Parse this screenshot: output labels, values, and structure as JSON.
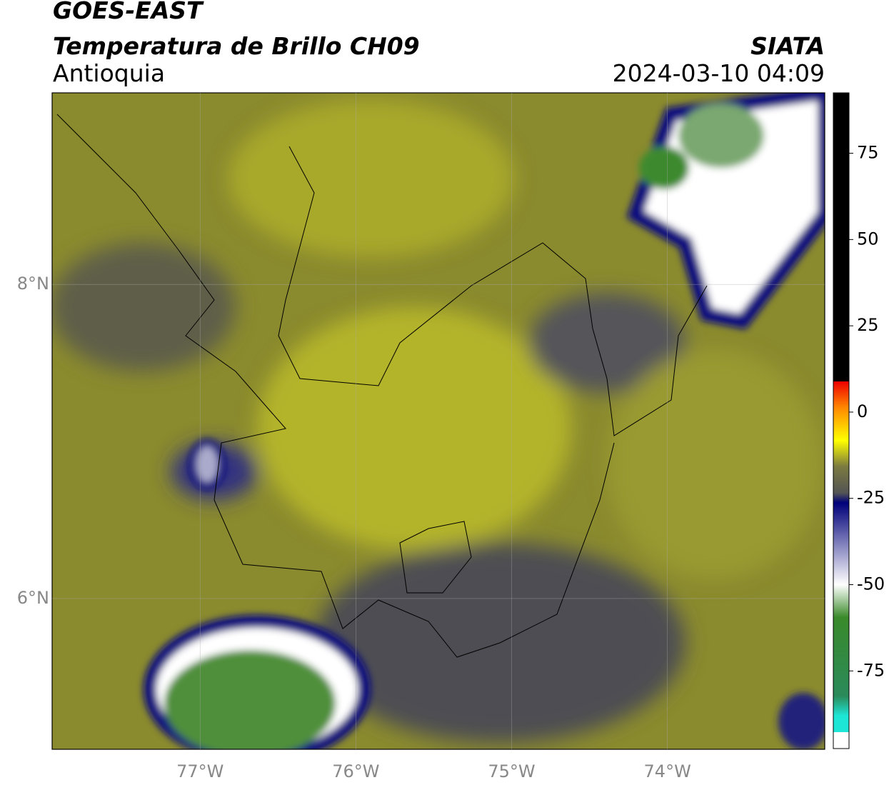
{
  "header": {
    "title": "GOES-EAST",
    "subtitle": "Temperatura de Brillo CH09",
    "region": "Antioquia",
    "source": "SIATA",
    "datetime": "2024-03-10 04:09"
  },
  "map": {
    "lon_lim": [
      -77.95,
      -72.99
    ],
    "lat_lim": [
      5.04,
      9.22
    ],
    "lon_ticks": [
      {
        "value": -77,
        "label": "77°W"
      },
      {
        "value": -76,
        "label": "76°W"
      },
      {
        "value": -75,
        "label": "75°W"
      },
      {
        "value": -74,
        "label": "74°W"
      }
    ],
    "lat_ticks": [
      {
        "value": 8,
        "label": "8°N"
      },
      {
        "value": 6,
        "label": "6°N"
      }
    ]
  },
  "colorbar": {
    "lim": [
      -97.5,
      92.5
    ],
    "ticks": [
      75,
      50,
      25,
      0,
      -25,
      -50,
      -75
    ]
  }
}
